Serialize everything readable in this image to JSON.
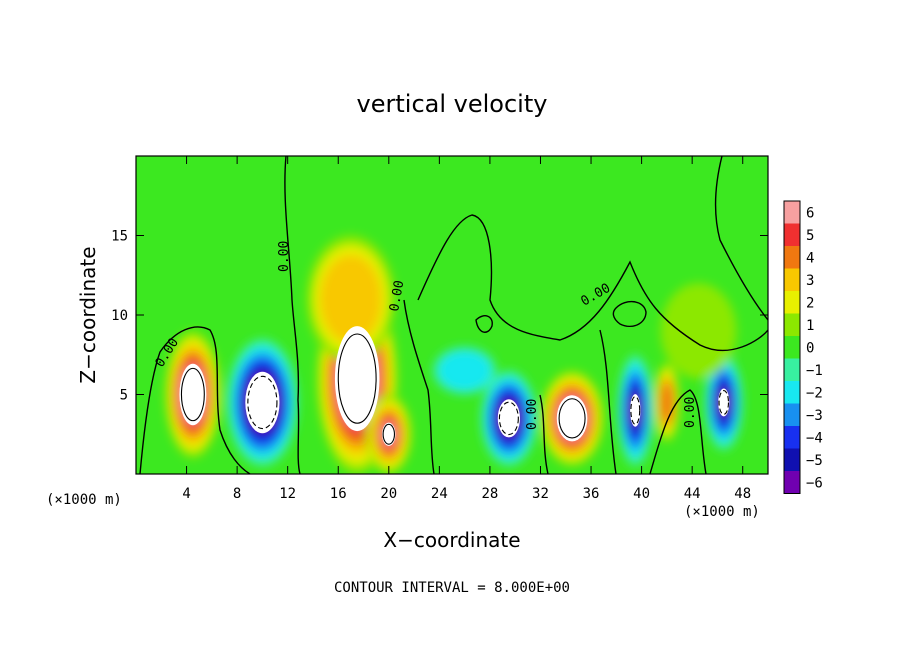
{
  "chart_data": {
    "type": "heatmap",
    "title": "vertical velocity",
    "xlabel": "X−coordinate",
    "ylabel": "Z−coordinate",
    "x_unit_label": "(×1000 m)",
    "x_ticks": [
      4,
      8,
      12,
      16,
      20,
      24,
      28,
      32,
      36,
      40,
      44,
      48
    ],
    "y_ticks": [
      5,
      10,
      15
    ],
    "xlim": [
      0,
      50
    ],
    "ylim": [
      0,
      20
    ],
    "colorbar": {
      "ticks": [
        6,
        5,
        4,
        3,
        2,
        1,
        0,
        -1,
        -2,
        -3,
        -4,
        -5,
        -6
      ],
      "tick_labels": [
        "6",
        "5",
        "4",
        "3",
        "2",
        "1",
        "0",
        "−1",
        "−2",
        "−3",
        "−4",
        "−5",
        "−6"
      ],
      "colors": [
        "#f7a0a0",
        "#f03030",
        "#f07810",
        "#f8c800",
        "#e8f000",
        "#8ce800",
        "#3ce820",
        "#38f0a0",
        "#18e8f0",
        "#1890f0",
        "#1830f0",
        "#1010b0",
        "#7000b0"
      ]
    },
    "contour_labels": [
      "0.00",
      "0.00",
      "0.00",
      "0.00",
      "0.00",
      "0.00"
    ],
    "cells": [
      {
        "x": 4.5,
        "z": 5.0,
        "rx": 2.2,
        "rz": 4.0,
        "w": 9
      },
      {
        "x": 10.0,
        "z": 4.5,
        "rx": 2.8,
        "rz": 4.0,
        "w": -9
      },
      {
        "x": 17.5,
        "z": 6.0,
        "rx": 3.2,
        "rz": 6.0,
        "w": 10
      },
      {
        "x": 20.0,
        "z": 2.5,
        "rx": 1.8,
        "rz": 2.5,
        "w": 7
      },
      {
        "x": 29.5,
        "z": 3.5,
        "rx": 2.2,
        "rz": 3.0,
        "w": -8
      },
      {
        "x": 34.5,
        "z": 3.5,
        "rx": 2.5,
        "rz": 3.0,
        "w": 9
      },
      {
        "x": 39.5,
        "z": 4.0,
        "rx": 1.4,
        "rz": 3.5,
        "w": -7
      },
      {
        "x": 42.0,
        "z": 4.5,
        "rx": 1.0,
        "rz": 2.5,
        "w": 4
      },
      {
        "x": 46.5,
        "z": 4.5,
        "rx": 1.5,
        "rz": 3.0,
        "w": -7
      },
      {
        "x": 17.0,
        "z": 11.0,
        "rx": 3.5,
        "rz": 4.0,
        "w": 3
      },
      {
        "x": 26.0,
        "z": 6.5,
        "rx": 2.5,
        "rz": 1.5,
        "w": -2
      },
      {
        "x": 44.5,
        "z": 9.0,
        "rx": 3.0,
        "rz": 3.0,
        "w": 1.2
      }
    ],
    "grid": false,
    "legend": "right"
  },
  "footer": {
    "contour_interval": "CONTOUR INTERVAL = 8.000E+00"
  }
}
